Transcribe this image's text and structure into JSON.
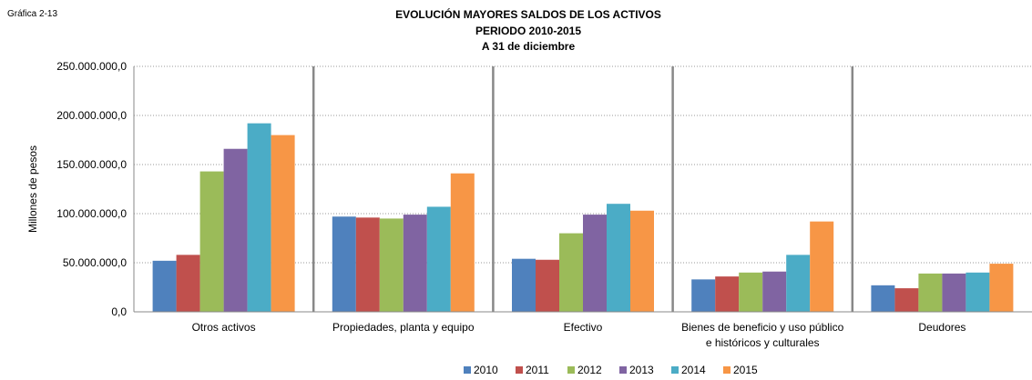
{
  "chart_data": {
    "type": "bar",
    "label": "Gráfica 2-13",
    "title": "EVOLUCIÓN MAYORES SALDOS DE LOS ACTIVOS",
    "subtitle": [
      "PERIODO 2010-2015",
      "A 31 de diciembre"
    ],
    "ylabel": "Millones de pesos",
    "categories": [
      "Otros activos",
      "Propiedades, planta y equipo",
      "Efectivo",
      "Bienes de beneficio y uso público e históricos y culturales",
      "Deudores"
    ],
    "series": [
      {
        "name": "2010",
        "color": "#4f81bd",
        "values": [
          52000000,
          97000000,
          54000000,
          33000000,
          27000000
        ]
      },
      {
        "name": "2011",
        "color": "#c0504d",
        "values": [
          58000000,
          96000000,
          53000000,
          36000000,
          24000000
        ]
      },
      {
        "name": "2012",
        "color": "#9bbb59",
        "values": [
          143000000,
          95000000,
          80000000,
          40000000,
          39000000
        ]
      },
      {
        "name": "2013",
        "color": "#8064a2",
        "values": [
          166000000,
          99000000,
          99000000,
          41000000,
          39000000
        ]
      },
      {
        "name": "2014",
        "color": "#4bacc6",
        "values": [
          192000000,
          107000000,
          110000000,
          58000000,
          40000000
        ]
      },
      {
        "name": "2015",
        "color": "#f79646",
        "values": [
          180000000,
          141000000,
          103000000,
          92000000,
          49000000
        ]
      }
    ],
    "ylim": [
      0,
      250000000
    ],
    "yticks": [
      {
        "value": 0,
        "label": "0,0"
      },
      {
        "value": 50000000,
        "label": "50.000.000,0"
      },
      {
        "value": 100000000,
        "label": "100.000.000,0"
      },
      {
        "value": 150000000,
        "label": "150.000.000,0"
      },
      {
        "value": 200000000,
        "label": "200.000.000,0"
      },
      {
        "value": 250000000,
        "label": "250.000.000,0"
      }
    ],
    "grid": true,
    "legend": "bottom"
  }
}
